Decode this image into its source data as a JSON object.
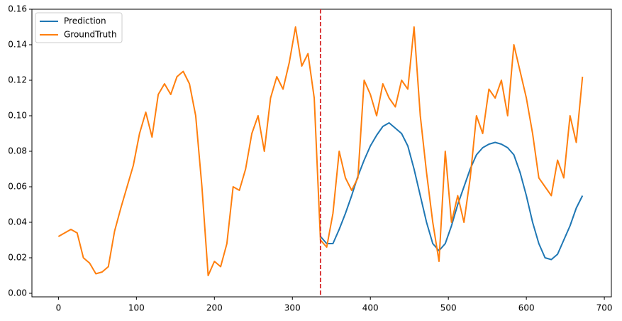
{
  "chart_data": {
    "type": "line",
    "x": [
      0,
      8,
      16,
      24,
      32,
      40,
      48,
      56,
      64,
      72,
      80,
      88,
      96,
      104,
      112,
      120,
      128,
      136,
      144,
      152,
      160,
      168,
      176,
      184,
      192,
      200,
      208,
      216,
      224,
      232,
      240,
      248,
      256,
      264,
      272,
      280,
      288,
      296,
      304,
      312,
      320,
      328,
      336,
      344,
      352,
      360,
      368,
      376,
      384,
      392,
      400,
      408,
      416,
      424,
      432,
      440,
      448,
      456,
      464,
      472,
      480,
      488,
      496,
      504,
      512,
      520,
      528,
      536,
      544,
      552,
      560,
      568,
      576,
      584,
      592,
      600,
      608,
      616,
      624,
      632,
      640,
      648,
      656,
      664,
      672
    ],
    "series": [
      {
        "name": "Prediction",
        "color": "#1f77b4",
        "values": [
          null,
          null,
          null,
          null,
          null,
          null,
          null,
          null,
          null,
          null,
          null,
          null,
          null,
          null,
          null,
          null,
          null,
          null,
          null,
          null,
          null,
          null,
          null,
          null,
          null,
          null,
          null,
          null,
          null,
          null,
          null,
          null,
          null,
          null,
          null,
          null,
          null,
          null,
          null,
          null,
          null,
          null,
          0.032,
          0.028,
          0.028,
          0.036,
          0.045,
          0.055,
          0.066,
          0.075,
          0.083,
          0.089,
          0.094,
          0.096,
          0.093,
          0.09,
          0.083,
          0.07,
          0.055,
          0.04,
          0.028,
          0.024,
          0.028,
          0.038,
          0.05,
          0.06,
          0.07,
          0.078,
          0.082,
          0.084,
          0.085,
          0.084,
          0.082,
          0.078,
          0.068,
          0.055,
          0.04,
          0.028,
          0.02,
          0.019,
          0.022,
          0.03,
          0.038,
          0.048,
          0.055
        ]
      },
      {
        "name": "GroundTruth",
        "color": "#ff7f0e",
        "values": [
          0.032,
          0.034,
          0.036,
          0.034,
          0.02,
          0.017,
          0.011,
          0.012,
          0.015,
          0.035,
          0.048,
          0.06,
          0.072,
          0.09,
          0.102,
          0.088,
          0.112,
          0.118,
          0.112,
          0.122,
          0.125,
          0.118,
          0.1,
          0.06,
          0.01,
          0.018,
          0.015,
          0.028,
          0.06,
          0.058,
          0.07,
          0.09,
          0.1,
          0.08,
          0.11,
          0.122,
          0.115,
          0.13,
          0.15,
          0.128,
          0.135,
          0.11,
          0.03,
          0.026,
          0.045,
          0.08,
          0.065,
          0.058,
          0.065,
          0.12,
          0.112,
          0.1,
          0.118,
          0.11,
          0.105,
          0.12,
          0.115,
          0.15,
          0.1,
          0.068,
          0.04,
          0.018,
          0.08,
          0.04,
          0.055,
          0.04,
          0.065,
          0.1,
          0.09,
          0.115,
          0.11,
          0.12,
          0.1,
          0.14,
          0.125,
          0.11,
          0.09,
          0.065,
          0.06,
          0.055,
          0.075,
          0.065,
          0.1,
          0.085,
          0.122
        ]
      }
    ],
    "vline": {
      "x": 336,
      "color": "#d62728"
    },
    "xlim": [
      -34,
      709
    ],
    "xticks": [
      0,
      100,
      200,
      300,
      400,
      500,
      600,
      700
    ],
    "ylim": [
      -0.002,
      0.16
    ],
    "yticks": [
      {
        "value": 0,
        "label": "0.00"
      },
      0.02,
      0.04,
      0.06,
      0.08,
      {
        "value": 0.1,
        "label": "0.10"
      },
      0.12,
      0.14,
      0.16
    ],
    "legend": "upper left"
  }
}
